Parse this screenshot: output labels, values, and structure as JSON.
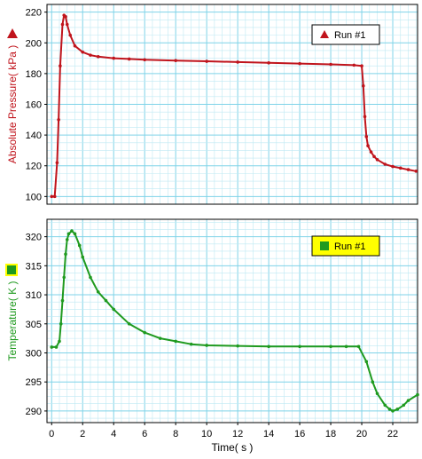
{
  "chart_data": [
    {
      "type": "line",
      "ylabel": "Absolute Pressure( kPa )",
      "ylim": [
        95,
        225
      ],
      "xlim": [
        -0.3,
        23.6
      ],
      "yticks": [
        "100",
        "120",
        "140",
        "160",
        "180",
        "200",
        "220"
      ],
      "color": "#c0141c",
      "marker": "point",
      "grid": true,
      "legend_position": "top-right",
      "legend_style": "boxed",
      "series": [
        {
          "name": "Run #1",
          "x": [
            0.0,
            0.2,
            0.35,
            0.45,
            0.55,
            0.7,
            0.8,
            0.9,
            1.0,
            1.2,
            1.5,
            2.0,
            2.5,
            3.0,
            4.0,
            5.0,
            6.0,
            8.0,
            10.0,
            12.0,
            14.0,
            16.0,
            18.0,
            19.5,
            20.0,
            20.1,
            20.2,
            20.3,
            20.4,
            20.6,
            20.8,
            21.0,
            21.5,
            22.0,
            22.5,
            23.0,
            23.5
          ],
          "y": [
            100,
            100,
            122,
            150,
            185,
            212,
            218,
            217,
            212,
            205,
            198,
            194,
            192,
            191,
            190,
            189.5,
            189,
            188.5,
            188,
            187.5,
            187,
            186.5,
            186,
            185.5,
            185,
            172,
            152,
            139,
            133,
            129,
            126,
            124,
            121,
            119.5,
            118.5,
            117.5,
            116.5
          ]
        }
      ]
    },
    {
      "type": "line",
      "xlabel": "Time( s )",
      "ylabel": "Temperature( K )",
      "ylim": [
        288,
        323
      ],
      "xlim": [
        -0.3,
        23.6
      ],
      "yticks": [
        "290",
        "295",
        "300",
        "305",
        "310",
        "315",
        "320"
      ],
      "xticks": [
        "0",
        "2",
        "4",
        "6",
        "8",
        "10",
        "12",
        "14",
        "16",
        "18",
        "20",
        "22"
      ],
      "color": "#1f9a1f",
      "marker": "point",
      "grid": true,
      "legend_position": "top-right",
      "legend_style": "boxed, yellow background",
      "series": [
        {
          "name": "Run #1",
          "x": [
            0.0,
            0.3,
            0.5,
            0.6,
            0.7,
            0.8,
            0.9,
            1.0,
            1.1,
            1.3,
            1.5,
            1.8,
            2.0,
            2.5,
            3.0,
            3.5,
            4.0,
            5.0,
            6.0,
            7.0,
            8.0,
            9.0,
            10.0,
            12.0,
            14.0,
            16.0,
            18.0,
            19.0,
            19.8,
            20.3,
            20.7,
            21.0,
            21.5,
            21.8,
            22.0,
            22.3,
            22.7,
            23.0,
            23.6
          ],
          "y": [
            301,
            301,
            302,
            305,
            309,
            313,
            317,
            319.5,
            320.5,
            321,
            320.5,
            318.5,
            316.5,
            313,
            310.5,
            309,
            307.5,
            305,
            303.5,
            302.5,
            302,
            301.5,
            301.3,
            301.2,
            301.1,
            301.1,
            301.1,
            301.1,
            301.1,
            298.5,
            295,
            293,
            291,
            290.3,
            290,
            290.3,
            291,
            291.8,
            292.8
          ]
        }
      ]
    }
  ]
}
